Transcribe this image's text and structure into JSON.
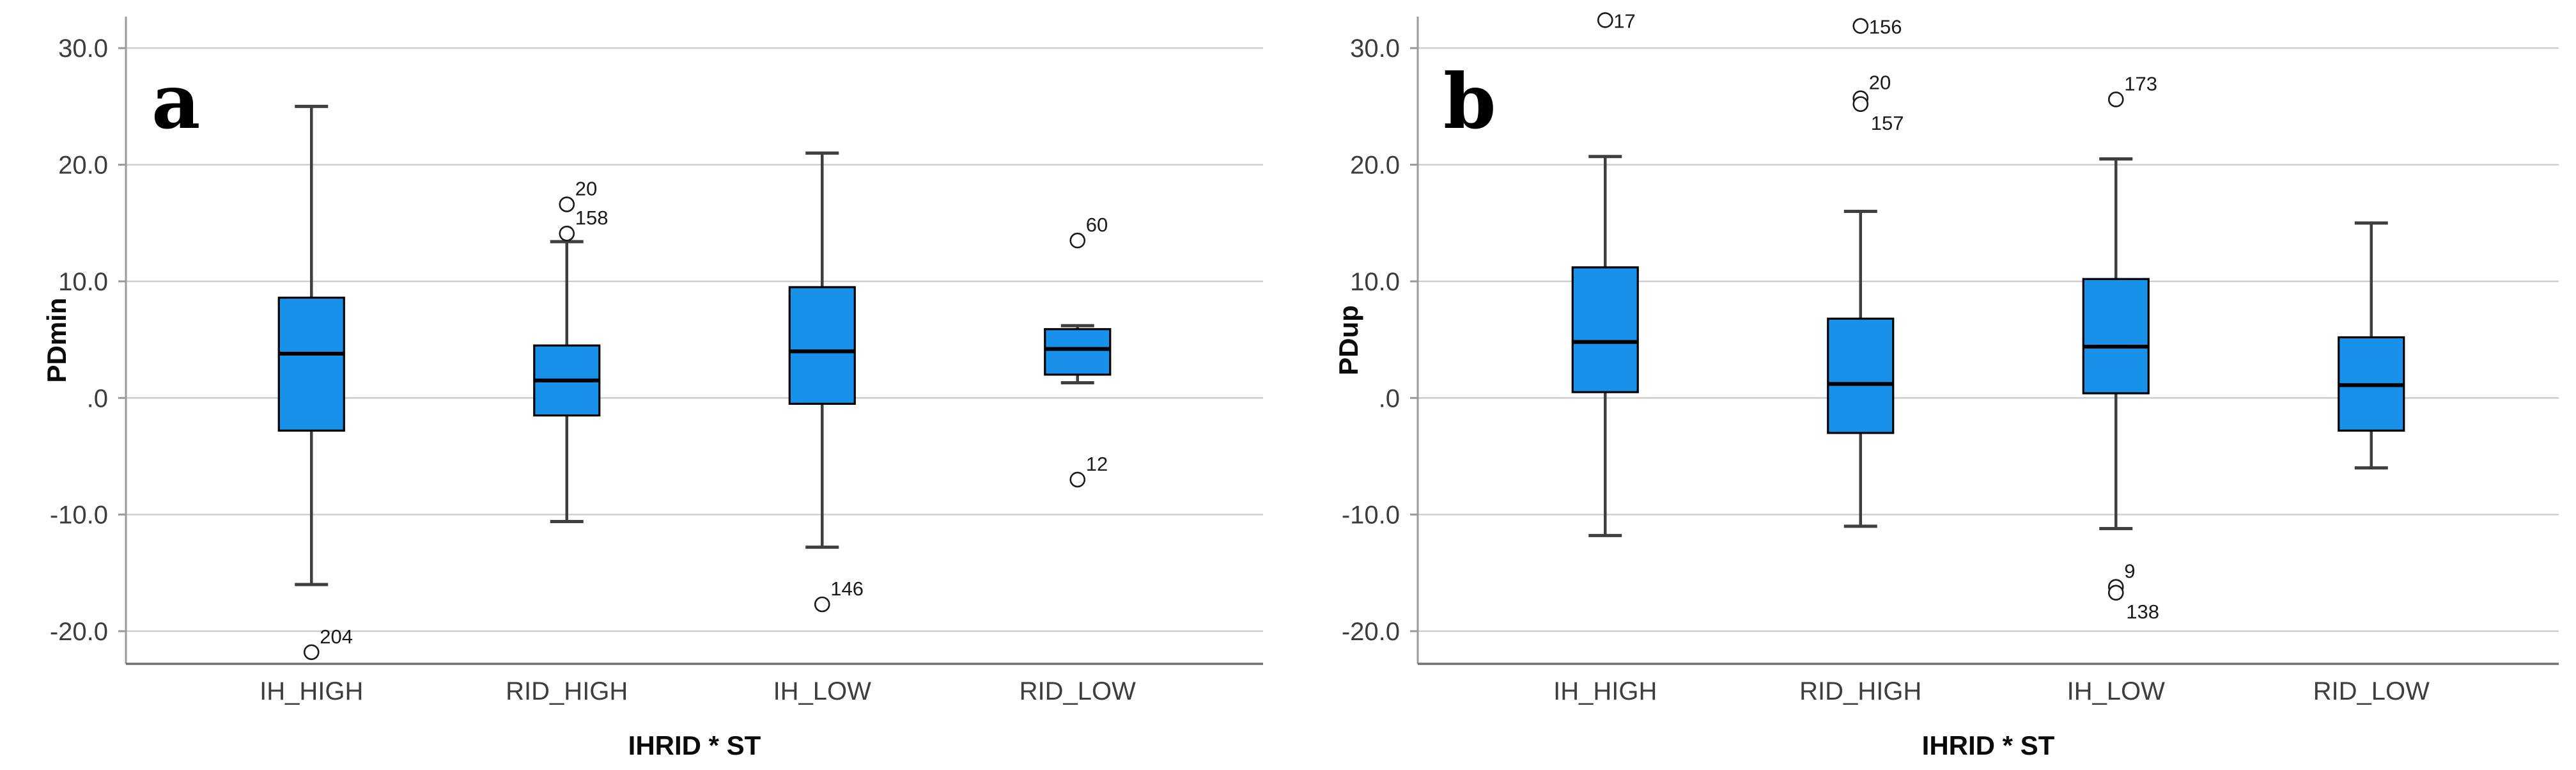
{
  "figure": {
    "background": "#ffffff",
    "box_fill": "#1791E9",
    "box_border": "#000000",
    "median_color": "#000000",
    "whisker_color": "#3f3f3f",
    "gridline_color": "#cccccc",
    "y_axis_color": "#9a9a9a",
    "x_axis_color": "#707070",
    "outlier_stroke": "#1a1a1a"
  },
  "chart_data": [
    {
      "type": "boxplot",
      "panel_letter": "a",
      "ylabel": "PDmin",
      "xlabel": "IHRID * ST",
      "categories": [
        "IH_HIGH",
        "RID_HIGH",
        "IH_LOW",
        "RID_LOW"
      ],
      "ylim": [
        -22.8,
        32.7
      ],
      "yticks": [
        30,
        20,
        10,
        0,
        -10,
        -20
      ],
      "ytick_labels": [
        "30.0",
        "20.0",
        "10.0",
        ".0",
        "-10.0",
        "-20.0"
      ],
      "grid": true,
      "series": [
        {
          "category": "IH_HIGH",
          "whisker_high": 25.0,
          "q3": 8.6,
          "median": 3.8,
          "q1": -2.8,
          "whisker_low": -16.0,
          "outliers": [
            {
              "value": -21.8,
              "label": "204",
              "label_pos": "ne"
            }
          ]
        },
        {
          "category": "RID_HIGH",
          "whisker_high": 13.4,
          "q3": 4.5,
          "median": 1.5,
          "q1": -1.5,
          "whisker_low": -10.6,
          "outliers": [
            {
              "value": 16.6,
              "label": "20",
              "label_pos": "ne"
            },
            {
              "value": 14.1,
              "label": "158",
              "label_pos": "ne"
            }
          ]
        },
        {
          "category": "IH_LOW",
          "whisker_high": 21.0,
          "q3": 9.5,
          "median": 4.0,
          "q1": -0.5,
          "whisker_low": -12.8,
          "outliers": [
            {
              "value": -17.7,
              "label": "146",
              "label_pos": "ne"
            }
          ]
        },
        {
          "category": "RID_LOW",
          "whisker_high": 6.2,
          "q3": 5.9,
          "median": 4.2,
          "q1": 2.0,
          "whisker_low": 1.3,
          "outliers": [
            {
              "value": 13.5,
              "label": "60",
              "label_pos": "ne"
            },
            {
              "value": -7.0,
              "label": "12",
              "label_pos": "ne"
            }
          ]
        }
      ]
    },
    {
      "type": "boxplot",
      "panel_letter": "b",
      "ylabel": "PDup",
      "xlabel": "IHRID * ST",
      "categories": [
        "IH_HIGH",
        "RID_HIGH",
        "IH_LOW",
        "RID_LOW"
      ],
      "ylim": [
        -22.8,
        32.7
      ],
      "yticks": [
        30,
        20,
        10,
        0,
        -10,
        -20
      ],
      "ytick_labels": [
        "30.0",
        "20.0",
        "10.0",
        ".0",
        "-10.0",
        "-20.0"
      ],
      "grid": true,
      "series": [
        {
          "category": "IH_HIGH",
          "whisker_high": 20.7,
          "q3": 11.2,
          "median": 4.8,
          "q1": 0.5,
          "whisker_low": -11.8,
          "outliers": [
            {
              "value": 32.4,
              "label": "17",
              "label_pos": "e"
            }
          ]
        },
        {
          "category": "RID_HIGH",
          "whisker_high": 16.0,
          "q3": 6.8,
          "median": 1.2,
          "q1": -3.0,
          "whisker_low": -11.0,
          "outliers": [
            {
              "value": 31.9,
              "label": "156",
              "label_pos": "e"
            },
            {
              "value": 25.7,
              "label": "20",
              "label_pos": "ne"
            },
            {
              "value": 25.2,
              "label": "157",
              "label_pos": "se"
            }
          ]
        },
        {
          "category": "IH_LOW",
          "whisker_high": 20.5,
          "q3": 10.2,
          "median": 4.4,
          "q1": 0.4,
          "whisker_low": -11.2,
          "outliers": [
            {
              "value": 25.6,
              "label": "173",
              "label_pos": "ne"
            },
            {
              "value": -16.2,
              "label": "9",
              "label_pos": "ne"
            },
            {
              "value": -16.7,
              "label": "138",
              "label_pos": "se"
            }
          ]
        },
        {
          "category": "RID_LOW",
          "whisker_high": 15.0,
          "q3": 5.2,
          "median": 1.1,
          "q1": -2.8,
          "whisker_low": -6.0,
          "outliers": []
        }
      ]
    }
  ]
}
